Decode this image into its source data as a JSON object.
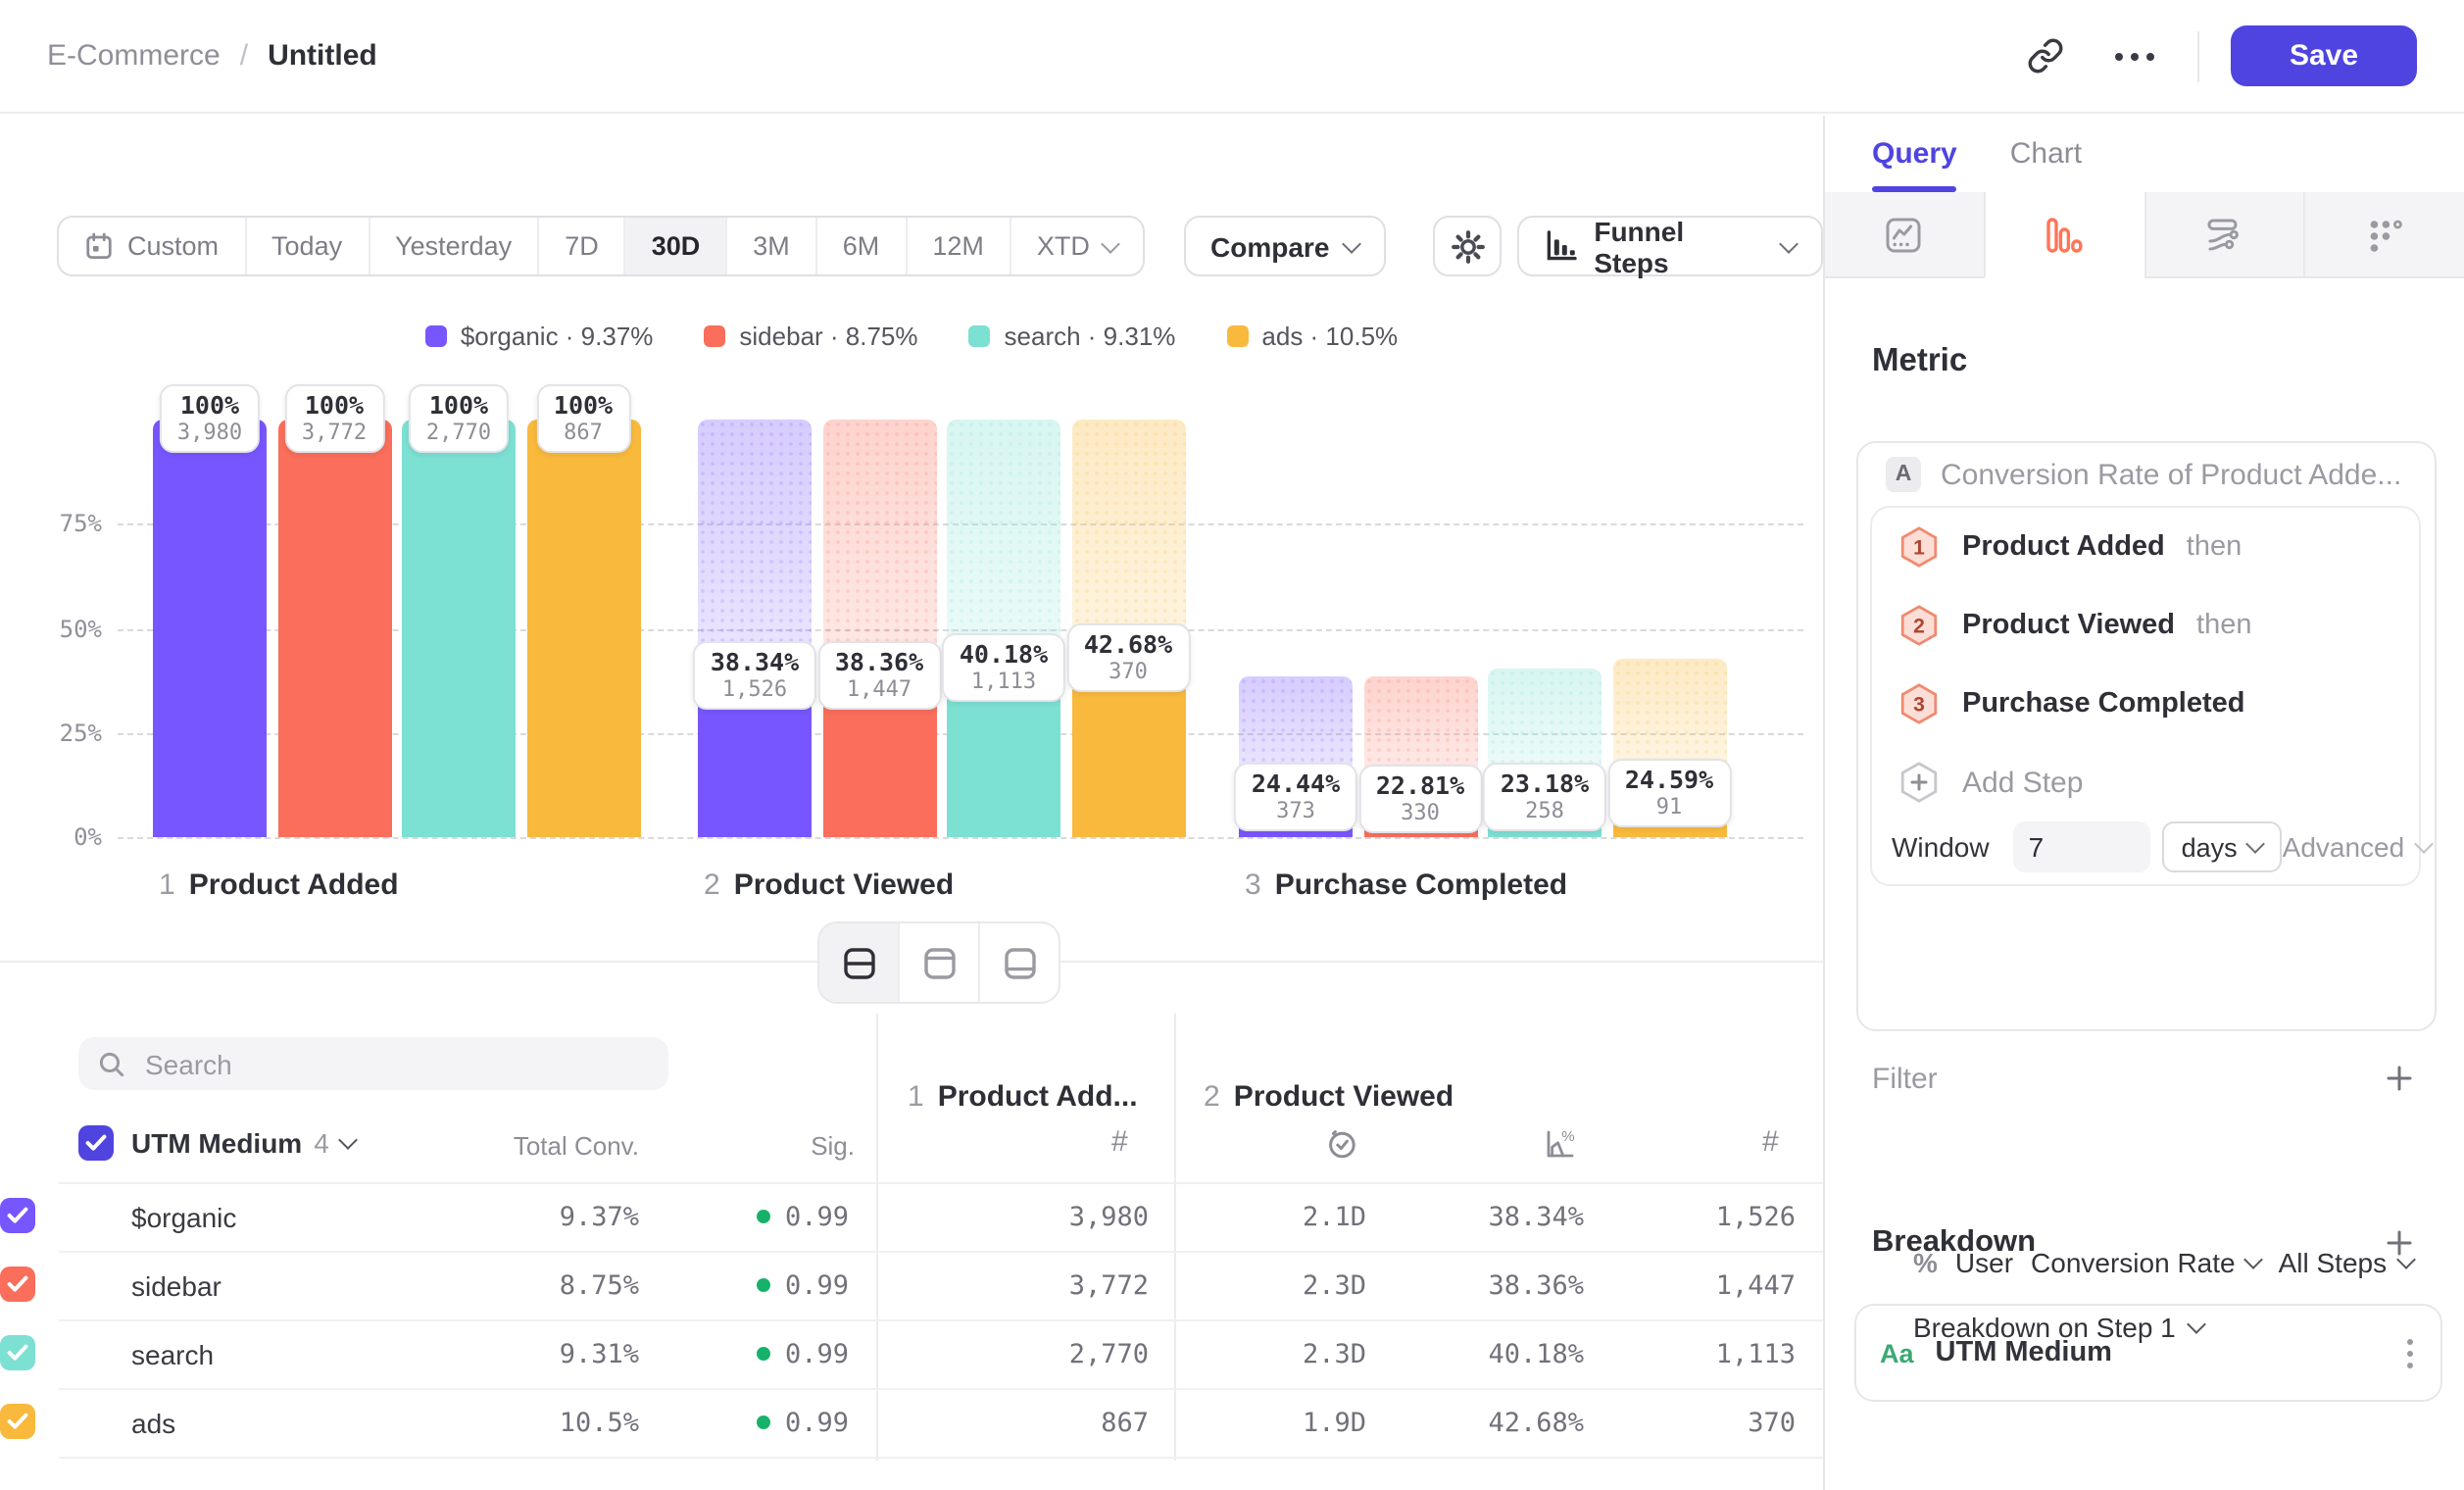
{
  "header": {
    "project": "E-Commerce",
    "divider": "/",
    "title": "Untitled",
    "save_label": "Save"
  },
  "toolbar": {
    "ranges": [
      "Custom",
      "Today",
      "Yesterday",
      "7D",
      "30D",
      "3M",
      "6M",
      "12M",
      "XTD"
    ],
    "active_range": "30D",
    "compare_label": "Compare",
    "chart_type_label": "Funnel Steps"
  },
  "legend": [
    {
      "name": "$organic",
      "value": "9.37%",
      "color": "#7856FF"
    },
    {
      "name": "sidebar",
      "value": "8.75%",
      "color": "#FA6E5B"
    },
    {
      "name": "search",
      "value": "9.31%",
      "color": "#7CE0D3"
    },
    {
      "name": "ads",
      "value": "10.5%",
      "color": "#F8B93C"
    }
  ],
  "chart_data": {
    "type": "bar",
    "variant": "funnel-steps-grouped",
    "title": "",
    "xlabel": "",
    "ylabel": "",
    "ylim": [
      0,
      100
    ],
    "grid": true,
    "legend_position": "top",
    "yticks": [
      {
        "label": "0%",
        "pct": 0
      },
      {
        "label": "25%",
        "pct": 25
      },
      {
        "label": "50%",
        "pct": 50
      },
      {
        "label": "75%",
        "pct": 75
      }
    ],
    "steps": [
      {
        "num": "1",
        "name": "Product Added"
      },
      {
        "num": "2",
        "name": "Product Viewed"
      },
      {
        "num": "3",
        "name": "Purchase Completed"
      }
    ],
    "series": [
      {
        "name": "$organic",
        "color": "#7856FF",
        "values": [
          {
            "pct_label": "100%",
            "count": "3,980",
            "height_pct": 100,
            "ghost_pct": 0
          },
          {
            "pct_label": "38.34%",
            "count": "1,526",
            "height_pct": 38.34,
            "ghost_pct": 100
          },
          {
            "pct_label": "24.44%",
            "count": "373",
            "height_pct": 9.37,
            "ghost_pct": 38.34
          }
        ]
      },
      {
        "name": "sidebar",
        "color": "#FA6E5B",
        "values": [
          {
            "pct_label": "100%",
            "count": "3,772",
            "height_pct": 100,
            "ghost_pct": 0
          },
          {
            "pct_label": "38.36%",
            "count": "1,447",
            "height_pct": 38.36,
            "ghost_pct": 100
          },
          {
            "pct_label": "22.81%",
            "count": "330",
            "height_pct": 8.75,
            "ghost_pct": 38.36
          }
        ]
      },
      {
        "name": "search",
        "color": "#7CE0D3",
        "values": [
          {
            "pct_label": "100%",
            "count": "2,770",
            "height_pct": 100,
            "ghost_pct": 0
          },
          {
            "pct_label": "40.18%",
            "count": "1,113",
            "height_pct": 40.18,
            "ghost_pct": 100
          },
          {
            "pct_label": "23.18%",
            "count": "258",
            "height_pct": 9.31,
            "ghost_pct": 40.18
          }
        ]
      },
      {
        "name": "ads",
        "color": "#F8B93C",
        "values": [
          {
            "pct_label": "100%",
            "count": "867",
            "height_pct": 100,
            "ghost_pct": 0
          },
          {
            "pct_label": "42.68%",
            "count": "370",
            "height_pct": 42.68,
            "ghost_pct": 100
          },
          {
            "pct_label": "24.59%",
            "count": "91",
            "height_pct": 10.5,
            "ghost_pct": 42.68
          }
        ]
      }
    ]
  },
  "table": {
    "search_placeholder": "Search",
    "breakdown_header": {
      "label": "UTM Medium",
      "count": "4"
    },
    "columns": {
      "total_conv": "Total Conv.",
      "sig": "Sig."
    },
    "group_headers": [
      {
        "num": "1",
        "name": "Product Add..."
      },
      {
        "num": "2",
        "name": "Product Viewed"
      }
    ],
    "sig_dot_color": "#17B26A",
    "rows": [
      {
        "name": "$organic",
        "color": "#7856FF",
        "total_conv": "9.37%",
        "sig": "0.99",
        "step1_count": "3,980",
        "step2_time": "2.1D",
        "step2_conv": "38.34%",
        "step2_count": "1,526"
      },
      {
        "name": "sidebar",
        "color": "#FA6E5B",
        "total_conv": "8.75%",
        "sig": "0.99",
        "step1_count": "3,772",
        "step2_time": "2.3D",
        "step2_conv": "38.36%",
        "step2_count": "1,447"
      },
      {
        "name": "search",
        "color": "#7CE0D3",
        "total_conv": "9.31%",
        "sig": "0.99",
        "step1_count": "2,770",
        "step2_time": "2.3D",
        "step2_conv": "40.18%",
        "step2_count": "1,113"
      },
      {
        "name": "ads",
        "color": "#F8B93C",
        "total_conv": "10.5%",
        "sig": "0.99",
        "step1_count": "867",
        "step2_time": "1.9D",
        "step2_conv": "42.68%",
        "step2_count": "370"
      }
    ]
  },
  "panel": {
    "tabs": [
      {
        "label": "Query"
      },
      {
        "label": "Chart"
      }
    ],
    "active_tab": "Query",
    "accent_color": "#4F44E0",
    "funnel_icon_color": "#FF7557",
    "metric_heading": "Metric",
    "metric_letter": "A",
    "metric_title": "Conversion Rate of Product Adde...",
    "funnel_steps": [
      {
        "num": "1",
        "name": "Product Added",
        "suffix": "then"
      },
      {
        "num": "2",
        "name": "Product Viewed",
        "suffix": "then"
      },
      {
        "num": "3",
        "name": "Purchase Completed",
        "suffix": ""
      }
    ],
    "add_step_label": "Add Step",
    "window": {
      "label": "Window",
      "value": "7",
      "unit": "days",
      "advanced_label": "Advanced"
    },
    "measure": {
      "prefix": "%",
      "entity": "User",
      "measure": "Conversion Rate",
      "scope": "All Steps"
    },
    "breakdown_on_label": "Breakdown on Step 1",
    "filter_label": "Filter",
    "breakdown_heading": "Breakdown",
    "breakdown_items": [
      {
        "type": "Aa",
        "name": "UTM Medium"
      }
    ]
  }
}
